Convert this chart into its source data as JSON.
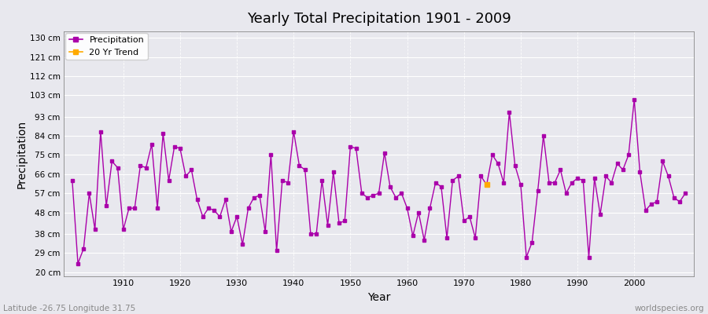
{
  "title": "Yearly Total Precipitation 1901 - 2009",
  "xlabel": "Year",
  "ylabel": "Precipitation",
  "subtitle_left": "Latitude -26.75 Longitude 31.75",
  "subtitle_right": "worldspecies.org",
  "legend_entries": [
    "Precipitation",
    "20 Yr Trend"
  ],
  "precip_color": "#aa00aa",
  "trend_color": "#ffaa00",
  "background_color": "#e8e8ee",
  "plot_bg_color": "#e8e8ee",
  "grid_color": "#ffffff",
  "ytick_labels": [
    "20 cm",
    "29 cm",
    "38 cm",
    "48 cm",
    "57 cm",
    "66 cm",
    "75 cm",
    "84 cm",
    "93 cm",
    "103 cm",
    "112 cm",
    "121 cm",
    "130 cm"
  ],
  "ytick_values": [
    20,
    29,
    38,
    48,
    57,
    66,
    75,
    84,
    93,
    103,
    112,
    121,
    130
  ],
  "years": [
    1901,
    1902,
    1903,
    1904,
    1905,
    1906,
    1907,
    1908,
    1909,
    1910,
    1911,
    1912,
    1913,
    1914,
    1915,
    1916,
    1917,
    1918,
    1919,
    1920,
    1921,
    1922,
    1923,
    1924,
    1925,
    1926,
    1927,
    1928,
    1929,
    1930,
    1931,
    1932,
    1933,
    1934,
    1935,
    1936,
    1937,
    1938,
    1939,
    1940,
    1941,
    1942,
    1943,
    1944,
    1945,
    1946,
    1947,
    1948,
    1949,
    1950,
    1951,
    1952,
    1953,
    1954,
    1955,
    1956,
    1957,
    1958,
    1959,
    1960,
    1961,
    1962,
    1963,
    1964,
    1965,
    1966,
    1967,
    1968,
    1969,
    1970,
    1971,
    1972,
    1973,
    1974,
    1975,
    1976,
    1977,
    1978,
    1979,
    1980,
    1981,
    1982,
    1983,
    1984,
    1985,
    1986,
    1987,
    1988,
    1989,
    1990,
    1991,
    1992,
    1993,
    1994,
    1995,
    1996,
    1997,
    1998,
    1999,
    2000,
    2001,
    2002,
    2003,
    2004,
    2005,
    2006,
    2007,
    2008,
    2009
  ],
  "precip": [
    63,
    24,
    31,
    57,
    40,
    86,
    51,
    72,
    69,
    40,
    50,
    50,
    70,
    69,
    80,
    50,
    85,
    63,
    79,
    78,
    65,
    68,
    54,
    46,
    50,
    49,
    46,
    54,
    39,
    46,
    33,
    50,
    55,
    56,
    39,
    75,
    30,
    63,
    62,
    86,
    70,
    68,
    38,
    38,
    63,
    42,
    67,
    43,
    44,
    79,
    78,
    57,
    55,
    56,
    57,
    76,
    60,
    55,
    57,
    50,
    37,
    48,
    35,
    50,
    62,
    60,
    36,
    63,
    65,
    44,
    46,
    36,
    65,
    61,
    75,
    71,
    62,
    95,
    70,
    61,
    27,
    34,
    58,
    84,
    62,
    62,
    68,
    57,
    62,
    64,
    63,
    27,
    64,
    47,
    65,
    62,
    71,
    68,
    75,
    101,
    67,
    49,
    52,
    53,
    72,
    65,
    55,
    53,
    57
  ],
  "trend_year": 1974,
  "trend_value": 61,
  "xlim": [
    1899.5,
    2010.5
  ],
  "ylim": [
    18,
    133
  ]
}
